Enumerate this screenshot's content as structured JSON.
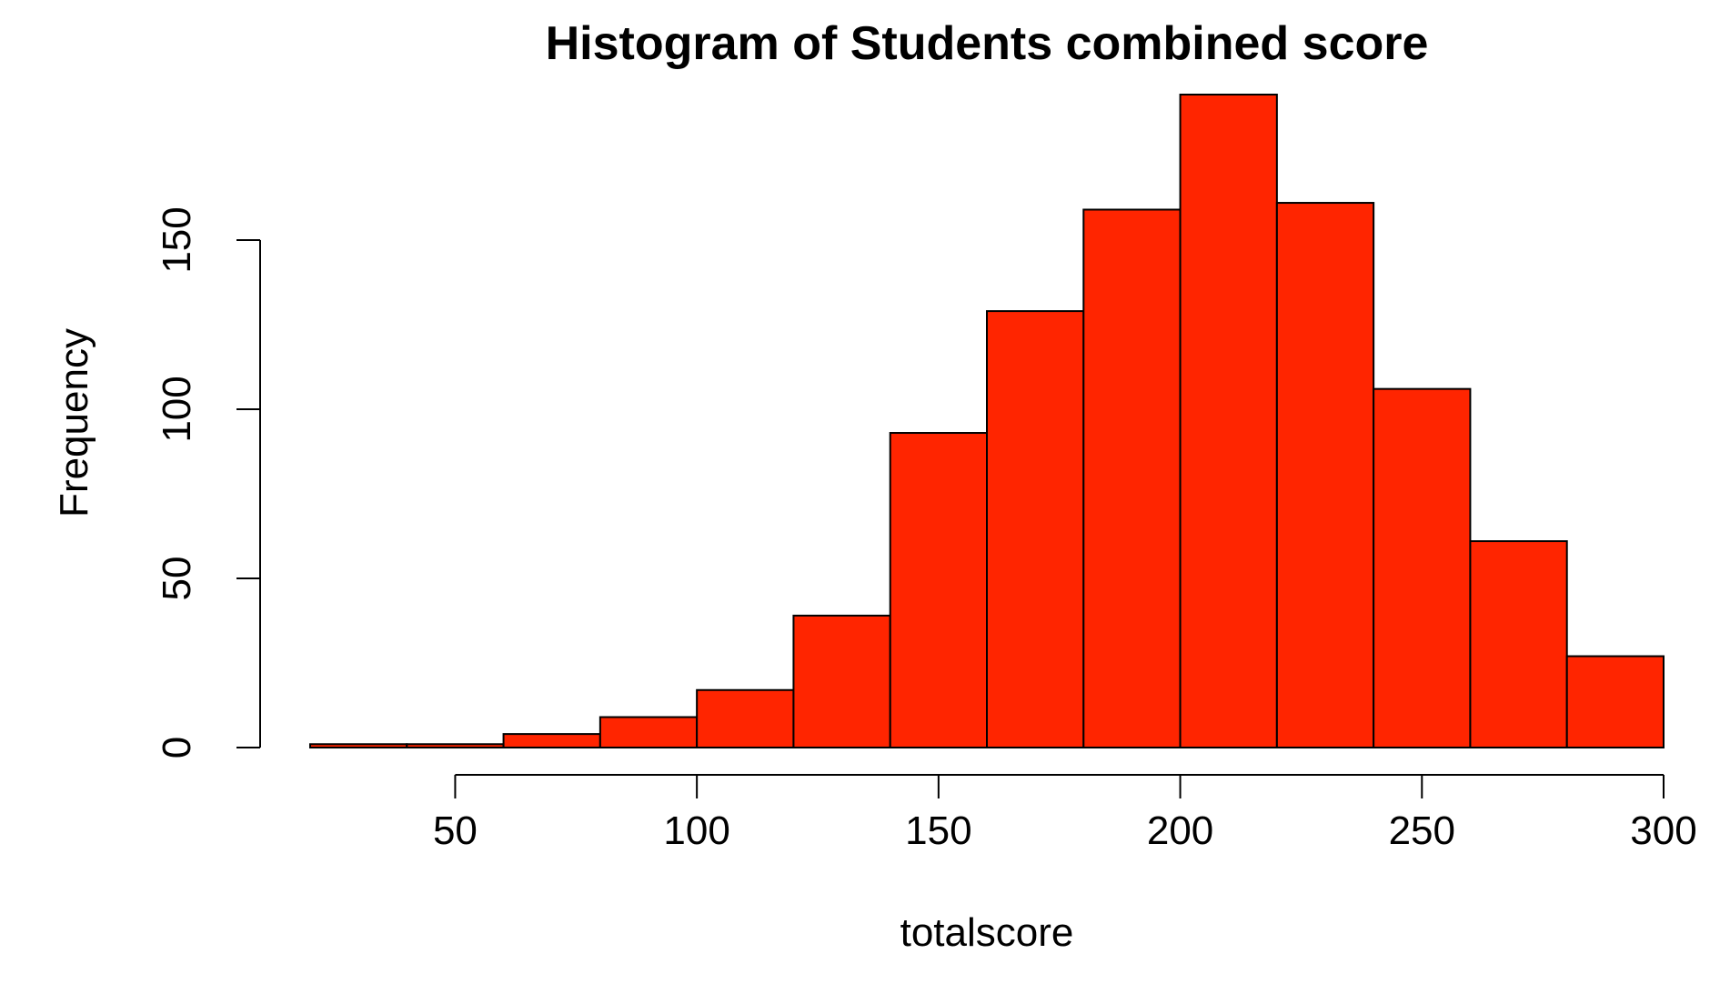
{
  "chart_data": {
    "type": "bar",
    "title": "Histogram of Students combined score",
    "xlabel": "totalscore",
    "ylabel": "Frequency",
    "bar_color": "#ff2500",
    "edge_color": "#000000",
    "x_ticks": [
      50,
      100,
      150,
      200,
      250,
      300
    ],
    "y_ticks": [
      0,
      50,
      100,
      150
    ],
    "xlim": [
      20,
      300
    ],
    "ylim": [
      0,
      193
    ],
    "bins": [
      {
        "start": 20,
        "end": 40,
        "value": 1
      },
      {
        "start": 40,
        "end": 60,
        "value": 1
      },
      {
        "start": 60,
        "end": 80,
        "value": 4
      },
      {
        "start": 80,
        "end": 100,
        "value": 9
      },
      {
        "start": 100,
        "end": 120,
        "value": 17
      },
      {
        "start": 120,
        "end": 140,
        "value": 39
      },
      {
        "start": 140,
        "end": 160,
        "value": 93
      },
      {
        "start": 160,
        "end": 180,
        "value": 129
      },
      {
        "start": 180,
        "end": 200,
        "value": 159
      },
      {
        "start": 200,
        "end": 220,
        "value": 193
      },
      {
        "start": 220,
        "end": 240,
        "value": 161
      },
      {
        "start": 240,
        "end": 260,
        "value": 106
      },
      {
        "start": 260,
        "end": 280,
        "value": 61
      },
      {
        "start": 280,
        "end": 300,
        "value": 27
      }
    ]
  }
}
